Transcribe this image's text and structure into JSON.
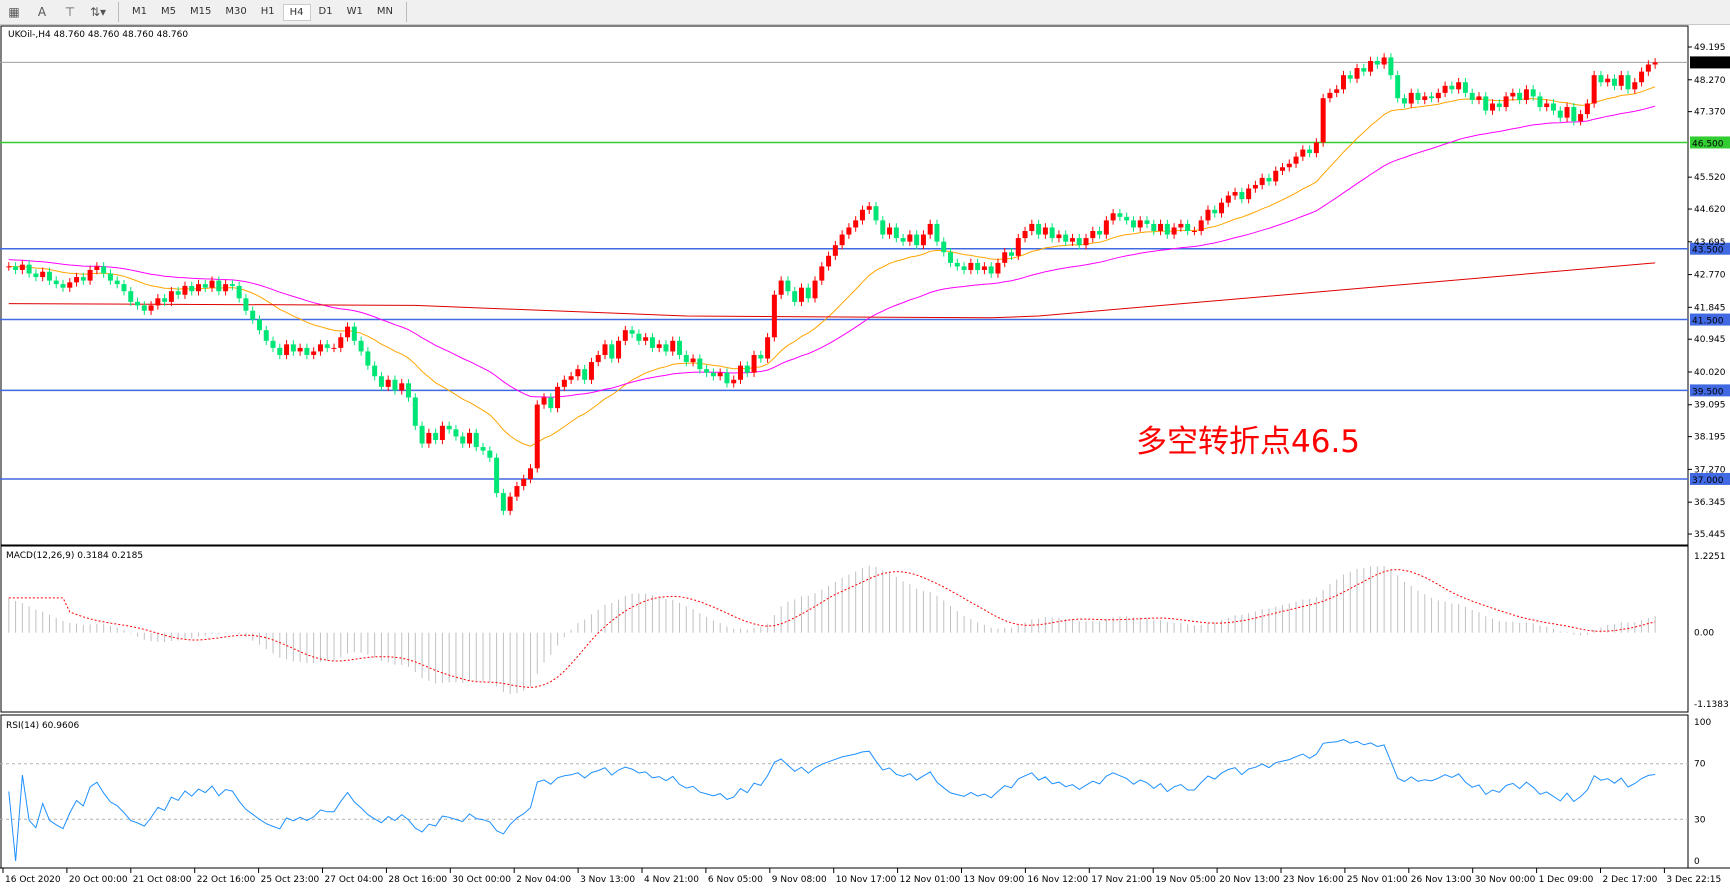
{
  "toolbar": {
    "icons": [
      "grid-icon",
      "text-icon",
      "text-label-icon",
      "arrows-icon"
    ],
    "timeframes": [
      "M1",
      "M5",
      "M15",
      "M30",
      "H1",
      "H4",
      "D1",
      "W1",
      "MN"
    ],
    "active_timeframe": "H4"
  },
  "main": {
    "header": "UKOil-,H4  48.760 48.760 48.760 48.760",
    "annotation": "多空转折点46.5",
    "annotation_color": "#ff0000",
    "current_price": "48.760"
  },
  "macd": {
    "label": "MACD(12,26,9) 0.3184 0.2185",
    "ticks": [
      "1.2251",
      "0.00",
      "-1.1383"
    ]
  },
  "rsi": {
    "label": "RSI(14) 60.9606",
    "ticks": [
      "100",
      "70",
      "30",
      "0"
    ]
  },
  "chart_data": {
    "type": "candlestick",
    "symbol": "UKOil-",
    "timeframe": "H4",
    "ylim": [
      35.445,
      49.195
    ],
    "price_ticks": [
      "49.195",
      "48.270",
      "47.370",
      "45.520",
      "44.620",
      "43.695",
      "42.770",
      "41.845",
      "40.945",
      "40.020",
      "39.095",
      "38.195",
      "37.270",
      "36.345",
      "35.445"
    ],
    "levels": [
      {
        "value": 46.5,
        "label": "46.500",
        "color": "#32cd32"
      },
      {
        "value": 43.5,
        "label": "43.500",
        "color": "#4169e1"
      },
      {
        "value": 41.5,
        "label": "41.500",
        "color": "#4169e1"
      },
      {
        "value": 39.5,
        "label": "39.500",
        "color": "#4169e1"
      },
      {
        "value": 37.0,
        "label": "37.000",
        "color": "#4169e1"
      }
    ],
    "time_labels": [
      "16 Oct 2020",
      "20 Oct 00:00",
      "21 Oct 08:00",
      "22 Oct 16:00",
      "25 Oct 23:00",
      "27 Oct 04:00",
      "28 Oct 16:00",
      "30 Oct 00:00",
      "2 Nov 04:00",
      "3 Nov 13:00",
      "4 Nov 21:00",
      "6 Nov 05:00",
      "9 Nov 08:00",
      "10 Nov 17:00",
      "12 Nov 01:00",
      "13 Nov 09:00",
      "16 Nov 12:00",
      "17 Nov 21:00",
      "19 Nov 05:00",
      "20 Nov 13:00",
      "23 Nov 16:00",
      "25 Nov 01:00",
      "26 Nov 13:00",
      "30 Nov 00:00",
      "1 Dec 09:00",
      "2 Dec 17:00",
      "3 Dec 22:15"
    ],
    "colors": {
      "up": "#ff0000",
      "down": "#00e676",
      "ma_fast": "#ffa500",
      "ma_mid": "#ff00ff",
      "ma_slow": "#e00000",
      "rsi": "#1e90ff",
      "macd_hist": "#c0c0c0",
      "macd_signal": "#ff0000"
    },
    "closes": [
      43.0,
      42.9,
      43.05,
      42.8,
      42.7,
      42.85,
      42.6,
      42.5,
      42.4,
      42.55,
      42.7,
      42.6,
      42.9,
      43.0,
      42.8,
      42.6,
      42.5,
      42.3,
      42.0,
      41.9,
      41.75,
      41.9,
      42.1,
      42.0,
      42.3,
      42.2,
      42.45,
      42.3,
      42.5,
      42.4,
      42.6,
      42.3,
      42.5,
      42.45,
      42.1,
      41.75,
      41.5,
      41.2,
      40.9,
      40.7,
      40.5,
      40.8,
      40.6,
      40.7,
      40.5,
      40.6,
      40.8,
      40.7,
      40.7,
      41.0,
      41.3,
      40.9,
      40.6,
      40.2,
      39.9,
      39.6,
      39.8,
      39.5,
      39.7,
      39.3,
      38.5,
      38.0,
      38.3,
      38.1,
      38.5,
      38.4,
      38.2,
      38.0,
      38.3,
      37.9,
      37.8,
      37.6,
      36.6,
      36.1,
      36.5,
      36.8,
      37.0,
      37.3,
      39.1,
      39.3,
      39.0,
      39.6,
      39.8,
      39.9,
      40.1,
      39.8,
      40.3,
      40.5,
      40.8,
      40.4,
      40.9,
      41.2,
      41.1,
      40.9,
      41.0,
      40.7,
      40.8,
      40.6,
      40.9,
      40.5,
      40.3,
      40.4,
      40.1,
      40.0,
      39.9,
      40.0,
      39.7,
      39.8,
      40.2,
      40.0,
      40.5,
      40.4,
      41.0,
      42.2,
      42.6,
      42.3,
      42.0,
      42.4,
      42.1,
      42.6,
      43.0,
      43.3,
      43.6,
      43.9,
      44.1,
      44.3,
      44.6,
      44.7,
      44.3,
      43.9,
      44.1,
      43.8,
      43.7,
      43.9,
      43.6,
      43.9,
      44.2,
      43.7,
      43.4,
      43.1,
      43.0,
      42.9,
      43.1,
      42.9,
      43.0,
      42.8,
      43.1,
      43.4,
      43.3,
      43.8,
      44.0,
      44.2,
      43.9,
      44.1,
      43.8,
      43.9,
      43.7,
      43.8,
      43.6,
      43.8,
      44.0,
      43.9,
      44.3,
      44.5,
      44.4,
      44.3,
      44.1,
      44.3,
      44.2,
      44.0,
      44.2,
      43.9,
      44.1,
      44.2,
      44.0,
      44.0,
      44.3,
      44.6,
      44.5,
      44.8,
      45.0,
      45.1,
      44.9,
      45.2,
      45.3,
      45.5,
      45.4,
      45.7,
      45.8,
      45.9,
      46.1,
      46.3,
      46.2,
      46.5,
      47.75,
      47.9,
      48.0,
      48.4,
      48.3,
      48.6,
      48.5,
      48.8,
      48.7,
      48.9,
      48.4,
      47.75,
      47.6,
      47.9,
      47.7,
      47.8,
      47.75,
      47.9,
      48.1,
      48.0,
      48.2,
      47.9,
      47.7,
      47.8,
      47.4,
      47.6,
      47.5,
      47.8,
      47.9,
      47.7,
      48.0,
      47.8,
      47.5,
      47.6,
      47.4,
      47.2,
      47.5,
      47.1,
      47.3,
      47.6,
      48.4,
      48.2,
      48.3,
      48.1,
      48.4,
      48.0,
      48.2,
      48.5,
      48.7,
      48.76
    ],
    "ma_slow": [
      [
        0,
        41.95
      ],
      [
        60,
        41.9
      ],
      [
        100,
        41.6
      ],
      [
        145,
        41.55
      ],
      [
        152,
        41.6
      ],
      [
        243,
        43.1
      ]
    ]
  }
}
